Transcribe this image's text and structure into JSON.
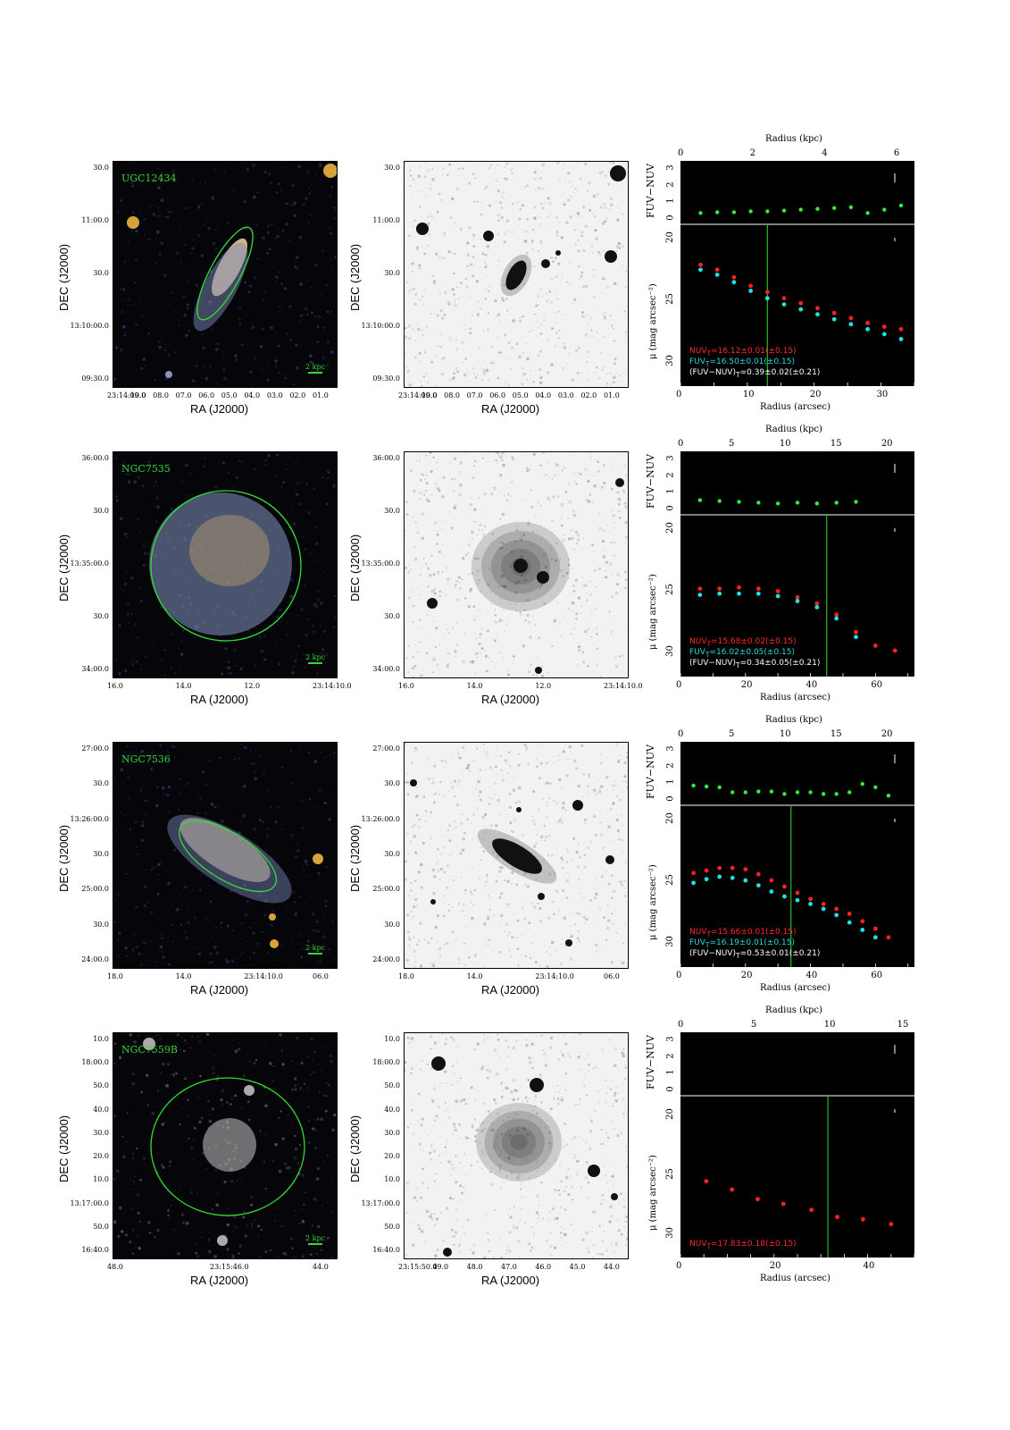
{
  "rows": [
    {
      "name": "UGC12434",
      "ra_ticks": [
        "23:14:10.0",
        "09.0",
        "08.0",
        "07.0",
        "06.0",
        "05.0",
        "04.0",
        "03.0",
        "02.0",
        "01.0"
      ],
      "dec_ticks": [
        "30.0",
        "11:00.0",
        "30.0",
        "13:10:00.0",
        "09:30.0"
      ],
      "scale_label": "2 kpc",
      "kpc_ticks": [
        "0",
        "2",
        "4",
        "6"
      ],
      "arcsec_ticks": [
        "0",
        "10",
        "20",
        "30"
      ],
      "nuv": "NUV",
      "fuv": "FUV",
      "nuv_val": "=16.12±0.01(±0.15)",
      "fuv_val": "=16.50±0.01(±0.15)",
      "col_val": "=0.39±0.02(±0.21)"
    },
    {
      "name": "NGC7535",
      "ra_ticks": [
        "16.0",
        "14.0",
        "12.0",
        "23:14:10.0"
      ],
      "dec_ticks": [
        "36:00.0",
        "30.0",
        "13:35:00.0",
        "30.0",
        "34:00.0"
      ],
      "scale_label": "2 kpc",
      "kpc_ticks": [
        "0",
        "5",
        "10",
        "15",
        "20"
      ],
      "arcsec_ticks": [
        "0",
        "20",
        "40",
        "60"
      ],
      "nuv": "NUV",
      "fuv": "FUV",
      "nuv_val": "=15.68±0.02(±0.15)",
      "fuv_val": "=16.02±0.05(±0.15)",
      "col_val": "=0.34±0.05(±0.21)"
    },
    {
      "name": "NGC7536",
      "ra_ticks": [
        "18.0",
        "14.0",
        "23:14:10.0",
        "06.0"
      ],
      "dec_ticks": [
        "27:00.0",
        "30.0",
        "13:26:00.0",
        "30.0",
        "25:00.0",
        "30.0",
        "24:00.0"
      ],
      "scale_label": "2 kpc",
      "kpc_ticks": [
        "0",
        "5",
        "10",
        "15",
        "20"
      ],
      "arcsec_ticks": [
        "0",
        "20",
        "40",
        "60"
      ],
      "nuv": "NUV",
      "fuv": "FUV",
      "nuv_val": "=15.66±0.01(±0.15)",
      "fuv_val": "=16.19±0.01(±0.15)",
      "col_val": "=0.53±0.01(±0.21)"
    },
    {
      "name": "NGC7559B",
      "ra_ticks": [
        "48.0",
        "23:15:46.0",
        "44.0"
      ],
      "ra_ticks_mid": [
        "23:15:50.0",
        "49.0",
        "48.0",
        "47.0",
        "46.0",
        "45.0",
        "44.0"
      ],
      "dec_ticks": [
        "10.0",
        "18:00.0",
        "50.0",
        "40.0",
        "30.0",
        "20.0",
        "10.0",
        "13:17:00.0",
        "50.0",
        "16:40.0"
      ],
      "scale_label": "2 kpc",
      "kpc_ticks": [
        "0",
        "5",
        "10",
        "15"
      ],
      "arcsec_ticks": [
        "0",
        "20",
        "40"
      ],
      "nuv": "NUV",
      "nuv_val": "=17.83±0.18(±0.15)"
    }
  ],
  "labels": {
    "ra": "RA (J2000)",
    "dec": "DEC (J2000)",
    "radius_kpc": "Radius (kpc)",
    "radius_arcsec": "Radius (arcsec)",
    "fuv_nuv": "FUV−NUV",
    "mu": "μ (mag arcsec⁻²)",
    "color_total": "(FUV−NUV)",
    "subscript_t": "T",
    "y_ticks_color": [
      "3",
      "2",
      "1",
      "0"
    ],
    "y_ticks_mu": [
      "20",
      "25",
      "30"
    ]
  },
  "chart_data": [
    {
      "type": "scatter",
      "title": "",
      "xlabel": "Radius (arcsec)",
      "ylabel": "μ (mag arcsec⁻²)",
      "series": [
        {
          "name": "NUV",
          "color": "#ff2020",
          "x": [
            3,
            5.5,
            8,
            10.5,
            13,
            15.5,
            18,
            20.5,
            23,
            25.5,
            28,
            30.5,
            33
          ],
          "y": [
            22.2,
            22.6,
            23.2,
            23.9,
            24.4,
            24.9,
            25.3,
            25.7,
            26.1,
            26.5,
            26.9,
            27.2,
            27.4
          ]
        },
        {
          "name": "FUV",
          "color": "#20e0e0",
          "x": [
            3,
            5.5,
            8,
            10.5,
            13,
            15.5,
            18,
            20.5,
            23,
            25.5,
            28,
            30.5,
            33
          ],
          "y": [
            22.6,
            23.0,
            23.6,
            24.3,
            24.9,
            25.4,
            25.8,
            26.2,
            26.6,
            27.0,
            27.4,
            27.8,
            28.2
          ]
        }
      ],
      "color": {
        "x": [
          3,
          5.5,
          8,
          10.5,
          13,
          15.5,
          18,
          20.5,
          23,
          25.5,
          28,
          30.5,
          33
        ],
        "y": [
          0.3,
          0.35,
          0.35,
          0.4,
          0.4,
          0.45,
          0.5,
          0.55,
          0.6,
          0.65,
          0.3,
          0.5,
          0.75
        ]
      },
      "xlim": [
        0,
        35
      ],
      "ylim": [
        32,
        19
      ],
      "kpc_max": 6.5,
      "cut": 13
    },
    {
      "type": "scatter",
      "title": "",
      "xlabel": "Radius (arcsec)",
      "ylabel": "μ (mag arcsec⁻²)",
      "series": [
        {
          "name": "NUV",
          "color": "#ff2020",
          "x": [
            6,
            12,
            18,
            24,
            30,
            36,
            42,
            48,
            54,
            60,
            66
          ],
          "y": [
            24.9,
            24.9,
            24.8,
            24.9,
            25.1,
            25.6,
            26.1,
            27.0,
            28.4,
            29.5,
            29.9
          ]
        },
        {
          "name": "FUV",
          "color": "#20e0e0",
          "x": [
            6,
            12,
            18,
            24,
            30,
            36,
            42,
            48,
            54
          ],
          "y": [
            25.4,
            25.3,
            25.3,
            25.3,
            25.5,
            25.9,
            26.4,
            27.3,
            28.8
          ]
        }
      ],
      "color": {
        "x": [
          6,
          12,
          18,
          24,
          30,
          36,
          42,
          48,
          54
        ],
        "y": [
          0.5,
          0.45,
          0.4,
          0.35,
          0.3,
          0.35,
          0.3,
          0.35,
          0.4
        ]
      },
      "xlim": [
        0,
        72
      ],
      "ylim": [
        32,
        19
      ],
      "kpc_max": 23,
      "cut": 45
    },
    {
      "type": "scatter",
      "title": "",
      "xlabel": "Radius (arcsec)",
      "ylabel": "μ (mag arcsec⁻²)",
      "series": [
        {
          "name": "NUV",
          "color": "#ff2020",
          "x": [
            4,
            8,
            12,
            16,
            20,
            24,
            28,
            32,
            36,
            40,
            44,
            48,
            52,
            56,
            60,
            64
          ],
          "y": [
            24.4,
            24.2,
            24.0,
            24.0,
            24.1,
            24.5,
            25.0,
            25.5,
            26.0,
            26.5,
            26.9,
            27.3,
            27.7,
            28.3,
            28.9,
            29.6
          ]
        },
        {
          "name": "FUV",
          "color": "#20e0e0",
          "x": [
            4,
            8,
            12,
            16,
            20,
            24,
            28,
            32,
            36,
            40,
            44,
            48,
            52,
            56,
            60
          ],
          "y": [
            25.2,
            24.9,
            24.7,
            24.8,
            25.0,
            25.4,
            25.9,
            26.3,
            26.6,
            26.9,
            27.3,
            27.8,
            28.4,
            29.0,
            29.6
          ]
        }
      ],
      "color": {
        "x": [
          4,
          8,
          12,
          16,
          20,
          24,
          28,
          32,
          36,
          40,
          44,
          48,
          52,
          56,
          60,
          64
        ],
        "y": [
          0.8,
          0.75,
          0.7,
          0.4,
          0.4,
          0.45,
          0.45,
          0.3,
          0.4,
          0.4,
          0.3,
          0.3,
          0.4,
          0.9,
          0.7,
          0.2
        ]
      },
      "xlim": [
        0,
        72
      ],
      "ylim": [
        32,
        19
      ],
      "kpc_max": 23,
      "cut": 34
    },
    {
      "type": "scatter",
      "title": "",
      "xlabel": "Radius (arcsec)",
      "ylabel": "μ (mag arcsec⁻²)",
      "series": [
        {
          "name": "NUV",
          "color": "#ff2020",
          "x": [
            5.5,
            11,
            16.5,
            22,
            28,
            33.5,
            39,
            45
          ],
          "y": [
            25.6,
            26.3,
            27.1,
            27.5,
            28.0,
            28.6,
            28.8,
            29.2
          ]
        }
      ],
      "color": {
        "x": [],
        "y": []
      },
      "xlim": [
        0,
        50
      ],
      "ylim": [
        32,
        18.5
      ],
      "kpc_max": 16,
      "cut": 31.5
    }
  ]
}
